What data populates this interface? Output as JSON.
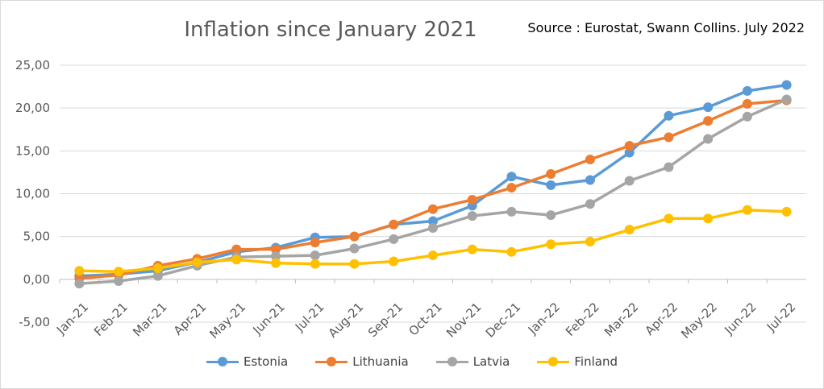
{
  "chart_data": {
    "type": "line",
    "title": "Inflation since January 2021",
    "source_note": "Source : Eurostat, Swann Collins. July 2022",
    "categories": [
      "Jan-21",
      "Feb-21",
      "Mar-21",
      "Apr-21",
      "May-21",
      "Jun-21",
      "Jul-21",
      "Aug-21",
      "Sep-21",
      "Oct-21",
      "Nov-21",
      "Dec-21",
      "Jan-22",
      "Feb-22",
      "Mar-22",
      "Apr-22",
      "May-22",
      "Jun-22",
      "Jul-22"
    ],
    "y_ticks": [
      "25,00",
      "20,00",
      "15,00",
      "10,00",
      "5,00",
      "0,00",
      "-5,00"
    ],
    "ylim": [
      -5,
      25
    ],
    "grid": true,
    "legend_position": "bottom",
    "series": [
      {
        "name": "Estonia",
        "color": "#5b9bd5",
        "values": [
          0.4,
          0.6,
          1.0,
          2.0,
          3.2,
          3.7,
          4.9,
          5.0,
          6.4,
          6.8,
          8.6,
          12.0,
          11.0,
          11.6,
          14.8,
          19.1,
          20.1,
          22.0,
          22.7
        ]
      },
      {
        "name": "Lithuania",
        "color": "#ed7d31",
        "values": [
          0.1,
          0.5,
          1.6,
          2.4,
          3.5,
          3.5,
          4.3,
          5.0,
          6.4,
          8.2,
          9.3,
          10.7,
          12.3,
          14.0,
          15.6,
          16.6,
          18.5,
          20.5,
          20.9
        ]
      },
      {
        "name": "Latvia",
        "color": "#a5a5a5",
        "values": [
          -0.5,
          -0.2,
          0.4,
          1.6,
          2.6,
          2.7,
          2.8,
          3.6,
          4.7,
          6.0,
          7.4,
          7.9,
          7.5,
          8.8,
          11.5,
          13.1,
          16.4,
          19.0,
          21.0
        ]
      },
      {
        "name": "Finland",
        "color": "#ffc000",
        "values": [
          1.0,
          0.9,
          1.3,
          2.0,
          2.3,
          1.9,
          1.8,
          1.8,
          2.1,
          2.8,
          3.5,
          3.2,
          4.1,
          4.4,
          5.8,
          7.1,
          7.1,
          8.1,
          7.9
        ]
      }
    ]
  }
}
